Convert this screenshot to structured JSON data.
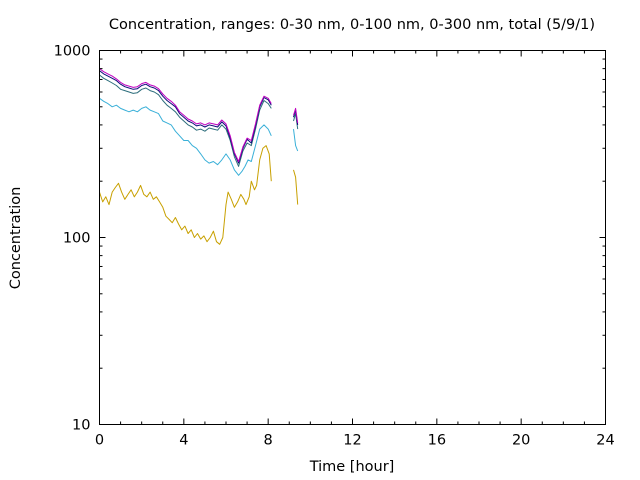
{
  "chart_data": {
    "type": "line",
    "title": "Concentration, ranges: 0-30 nm, 0-100 nm, 0-300 nm, total (5/9/1)",
    "xlabel": "Time [hour]",
    "ylabel": "Concentration",
    "xlim": [
      0,
      24
    ],
    "ylim": [
      10,
      1000
    ],
    "yscale": "log",
    "grid": false,
    "legend": "none",
    "x_ticks": [
      0,
      4,
      8,
      12,
      16,
      20,
      24
    ],
    "x_tick_labels": [
      "0",
      "4",
      "8",
      "12",
      "16",
      "20",
      "24"
    ],
    "y_ticks": [
      10,
      100,
      1000
    ],
    "y_tick_labels": [
      "10",
      "100",
      "1000"
    ],
    "series": [
      {
        "color": "#c8a000",
        "segments": [
          [
            [
              0.0,
              175
            ],
            [
              0.15,
              155
            ],
            [
              0.3,
              165
            ],
            [
              0.45,
              150
            ],
            [
              0.6,
              175
            ],
            [
              0.75,
              185
            ],
            [
              0.9,
              195
            ],
            [
              1.05,
              175
            ],
            [
              1.2,
              160
            ],
            [
              1.35,
              170
            ],
            [
              1.5,
              180
            ],
            [
              1.65,
              165
            ],
            [
              1.8,
              175
            ],
            [
              1.95,
              190
            ],
            [
              2.1,
              170
            ],
            [
              2.25,
              165
            ],
            [
              2.4,
              175
            ],
            [
              2.55,
              160
            ],
            [
              2.7,
              165
            ],
            [
              2.85,
              155
            ],
            [
              3.0,
              145
            ],
            [
              3.15,
              130
            ],
            [
              3.3,
              125
            ],
            [
              3.45,
              120
            ],
            [
              3.6,
              128
            ],
            [
              3.75,
              118
            ],
            [
              3.9,
              110
            ],
            [
              4.05,
              115
            ],
            [
              4.2,
              105
            ],
            [
              4.35,
              110
            ],
            [
              4.5,
              100
            ],
            [
              4.65,
              105
            ],
            [
              4.8,
              98
            ],
            [
              4.95,
              102
            ],
            [
              5.1,
              95
            ],
            [
              5.25,
              100
            ],
            [
              5.4,
              108
            ],
            [
              5.55,
              95
            ],
            [
              5.7,
              92
            ],
            [
              5.85,
              100
            ],
            [
              6.0,
              150
            ],
            [
              6.1,
              175
            ],
            [
              6.25,
              160
            ],
            [
              6.4,
              145
            ],
            [
              6.55,
              155
            ],
            [
              6.7,
              170
            ],
            [
              6.85,
              160
            ],
            [
              6.95,
              150
            ],
            [
              7.1,
              165
            ],
            [
              7.2,
              200
            ],
            [
              7.35,
              180
            ],
            [
              7.45,
              190
            ],
            [
              7.6,
              260
            ],
            [
              7.75,
              300
            ],
            [
              7.9,
              310
            ],
            [
              8.05,
              280
            ],
            [
              8.15,
              200
            ]
          ],
          [
            [
              9.2,
              230
            ],
            [
              9.3,
              210
            ],
            [
              9.4,
              150
            ]
          ]
        ]
      },
      {
        "color": "#3ab0d8",
        "segments": [
          [
            [
              0.0,
              555
            ],
            [
              0.2,
              535
            ],
            [
              0.4,
              520
            ],
            [
              0.6,
              500
            ],
            [
              0.8,
              510
            ],
            [
              1.0,
              490
            ],
            [
              1.2,
              480
            ],
            [
              1.4,
              470
            ],
            [
              1.6,
              480
            ],
            [
              1.8,
              470
            ],
            [
              2.0,
              490
            ],
            [
              2.2,
              500
            ],
            [
              2.4,
              480
            ],
            [
              2.6,
              470
            ],
            [
              2.8,
              460
            ],
            [
              3.0,
              420
            ],
            [
              3.2,
              410
            ],
            [
              3.4,
              400
            ],
            [
              3.6,
              370
            ],
            [
              3.8,
              350
            ],
            [
              4.0,
              330
            ],
            [
              4.2,
              330
            ],
            [
              4.4,
              310
            ],
            [
              4.6,
              300
            ],
            [
              4.8,
              280
            ],
            [
              5.0,
              260
            ],
            [
              5.2,
              250
            ],
            [
              5.4,
              255
            ],
            [
              5.6,
              245
            ],
            [
              5.8,
              260
            ],
            [
              6.0,
              280
            ],
            [
              6.2,
              260
            ],
            [
              6.4,
              230
            ],
            [
              6.6,
              215
            ],
            [
              6.75,
              225
            ],
            [
              6.9,
              240
            ],
            [
              7.05,
              260
            ],
            [
              7.2,
              255
            ],
            [
              7.4,
              310
            ],
            [
              7.6,
              380
            ],
            [
              7.8,
              400
            ],
            [
              8.0,
              380
            ],
            [
              8.15,
              350
            ]
          ],
          [
            [
              9.2,
              380
            ],
            [
              9.3,
              310
            ],
            [
              9.4,
              290
            ]
          ]
        ]
      },
      {
        "color": "#2d6e7c",
        "segments": [
          [
            [
              0.0,
              740
            ],
            [
              0.2,
              710
            ],
            [
              0.4,
              690
            ],
            [
              0.6,
              670
            ],
            [
              0.8,
              650
            ],
            [
              1.0,
              620
            ],
            [
              1.2,
              610
            ],
            [
              1.4,
              600
            ],
            [
              1.6,
              590
            ],
            [
              1.8,
              595
            ],
            [
              2.0,
              620
            ],
            [
              2.2,
              630
            ],
            [
              2.4,
              610
            ],
            [
              2.6,
              600
            ],
            [
              2.8,
              580
            ],
            [
              3.0,
              540
            ],
            [
              3.2,
              510
            ],
            [
              3.4,
              490
            ],
            [
              3.6,
              470
            ],
            [
              3.8,
              440
            ],
            [
              4.0,
              420
            ],
            [
              4.2,
              400
            ],
            [
              4.4,
              390
            ],
            [
              4.6,
              375
            ],
            [
              4.8,
              380
            ],
            [
              5.0,
              370
            ],
            [
              5.2,
              385
            ],
            [
              5.4,
              380
            ],
            [
              5.6,
              375
            ],
            [
              5.8,
              400
            ],
            [
              6.0,
              380
            ],
            [
              6.2,
              330
            ],
            [
              6.4,
              270
            ],
            [
              6.6,
              240
            ],
            [
              6.8,
              290
            ],
            [
              7.0,
              320
            ],
            [
              7.2,
              310
            ],
            [
              7.4,
              380
            ],
            [
              7.6,
              480
            ],
            [
              7.8,
              540
            ],
            [
              8.0,
              520
            ],
            [
              8.15,
              490
            ]
          ],
          [
            [
              9.2,
              420
            ],
            [
              9.3,
              460
            ],
            [
              9.4,
              380
            ]
          ]
        ]
      },
      {
        "color": "#0d0d7a",
        "segments": [
          [
            [
              0.0,
              780
            ],
            [
              0.2,
              750
            ],
            [
              0.4,
              730
            ],
            [
              0.6,
              710
            ],
            [
              0.8,
              690
            ],
            [
              1.0,
              660
            ],
            [
              1.2,
              640
            ],
            [
              1.4,
              630
            ],
            [
              1.6,
              620
            ],
            [
              1.8,
              625
            ],
            [
              2.0,
              650
            ],
            [
              2.2,
              660
            ],
            [
              2.4,
              640
            ],
            [
              2.6,
              630
            ],
            [
              2.8,
              610
            ],
            [
              3.0,
              570
            ],
            [
              3.2,
              540
            ],
            [
              3.4,
              520
            ],
            [
              3.6,
              500
            ],
            [
              3.8,
              460
            ],
            [
              4.0,
              440
            ],
            [
              4.2,
              420
            ],
            [
              4.4,
              410
            ],
            [
              4.6,
              395
            ],
            [
              4.8,
              400
            ],
            [
              5.0,
              390
            ],
            [
              5.2,
              400
            ],
            [
              5.4,
              395
            ],
            [
              5.6,
              390
            ],
            [
              5.8,
              415
            ],
            [
              6.0,
              395
            ],
            [
              6.2,
              340
            ],
            [
              6.4,
              280
            ],
            [
              6.6,
              250
            ],
            [
              6.8,
              300
            ],
            [
              7.0,
              335
            ],
            [
              7.2,
              320
            ],
            [
              7.4,
              395
            ],
            [
              7.6,
              500
            ],
            [
              7.8,
              560
            ],
            [
              8.0,
              545
            ],
            [
              8.15,
              510
            ]
          ],
          [
            [
              9.2,
              440
            ],
            [
              9.3,
              480
            ],
            [
              9.4,
              400
            ]
          ]
        ]
      },
      {
        "color": "#c000c0",
        "segments": [
          [
            [
              0.0,
              800
            ],
            [
              0.2,
              770
            ],
            [
              0.4,
              750
            ],
            [
              0.6,
              730
            ],
            [
              0.8,
              705
            ],
            [
              1.0,
              675
            ],
            [
              1.2,
              655
            ],
            [
              1.4,
              645
            ],
            [
              1.6,
              635
            ],
            [
              1.8,
              640
            ],
            [
              2.0,
              665
            ],
            [
              2.2,
              675
            ],
            [
              2.4,
              655
            ],
            [
              2.6,
              645
            ],
            [
              2.8,
              625
            ],
            [
              3.0,
              585
            ],
            [
              3.2,
              555
            ],
            [
              3.4,
              535
            ],
            [
              3.6,
              510
            ],
            [
              3.8,
              470
            ],
            [
              4.0,
              450
            ],
            [
              4.2,
              430
            ],
            [
              4.4,
              420
            ],
            [
              4.6,
              405
            ],
            [
              4.8,
              410
            ],
            [
              5.0,
              400
            ],
            [
              5.2,
              410
            ],
            [
              5.4,
              405
            ],
            [
              5.6,
              400
            ],
            [
              5.8,
              425
            ],
            [
              6.0,
              405
            ],
            [
              6.2,
              350
            ],
            [
              6.4,
              285
            ],
            [
              6.6,
              255
            ],
            [
              6.8,
              305
            ],
            [
              7.0,
              340
            ],
            [
              7.2,
              330
            ],
            [
              7.4,
              405
            ],
            [
              7.6,
              510
            ],
            [
              7.8,
              570
            ],
            [
              8.0,
              555
            ],
            [
              8.15,
              520
            ]
          ],
          [
            [
              9.2,
              450
            ],
            [
              9.3,
              490
            ],
            [
              9.4,
              410
            ]
          ]
        ]
      }
    ]
  }
}
